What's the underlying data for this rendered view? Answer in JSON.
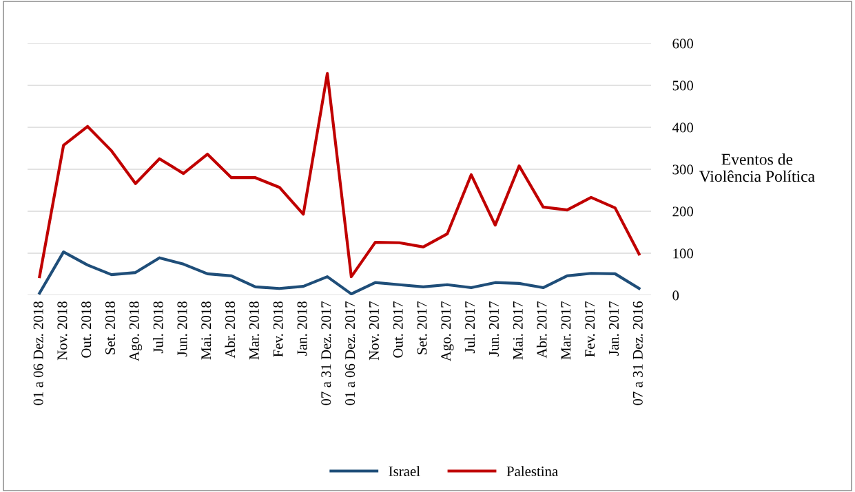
{
  "chart_data": {
    "type": "line",
    "categories": [
      "01 a 06 Dez. 2018",
      "Nov. 2018",
      "Out. 2018",
      "Set. 2018",
      "Ago. 2018",
      "Jul. 2018",
      "Jun. 2018",
      "Mai. 2018",
      "Abr. 2018",
      "Mar. 2018",
      "Fev. 2018",
      "Jan. 2018",
      "07 a 31 Dez. 2017",
      "01 a 06 Dez. 2017",
      "Nov. 2017",
      "Out. 2017",
      "Set. 2017",
      "Ago. 2017",
      "Jul. 2017",
      "Jun. 2017",
      "Mai. 2017",
      "Abr. 2017",
      "Mar. 2017",
      "Fev. 2017",
      "Jan. 2017",
      "07 a 31 Dez. 2016"
    ],
    "series": [
      {
        "name": "Israel",
        "color": "#1f4e79",
        "values": [
          5,
          103,
          72,
          49,
          54,
          89,
          74,
          51,
          46,
          20,
          16,
          21,
          44,
          3,
          30,
          25,
          20,
          25,
          18,
          30,
          28,
          18,
          46,
          52,
          51,
          16
        ]
      },
      {
        "name": "Palestina",
        "color": "#c00000",
        "values": [
          44,
          357,
          402,
          344,
          266,
          325,
          290,
          336,
          280,
          280,
          257,
          193,
          528,
          44,
          126,
          125,
          115,
          146,
          287,
          167,
          308,
          210,
          203,
          233,
          208,
          98
        ]
      }
    ],
    "ylabel": "Eventos de\nViolência Política",
    "ylim": [
      0,
      600
    ],
    "yticks": [
      0,
      100,
      200,
      300,
      400,
      500,
      600
    ],
    "grid": "y",
    "legend": "bottom",
    "marker": "none",
    "line_style": "solid"
  }
}
